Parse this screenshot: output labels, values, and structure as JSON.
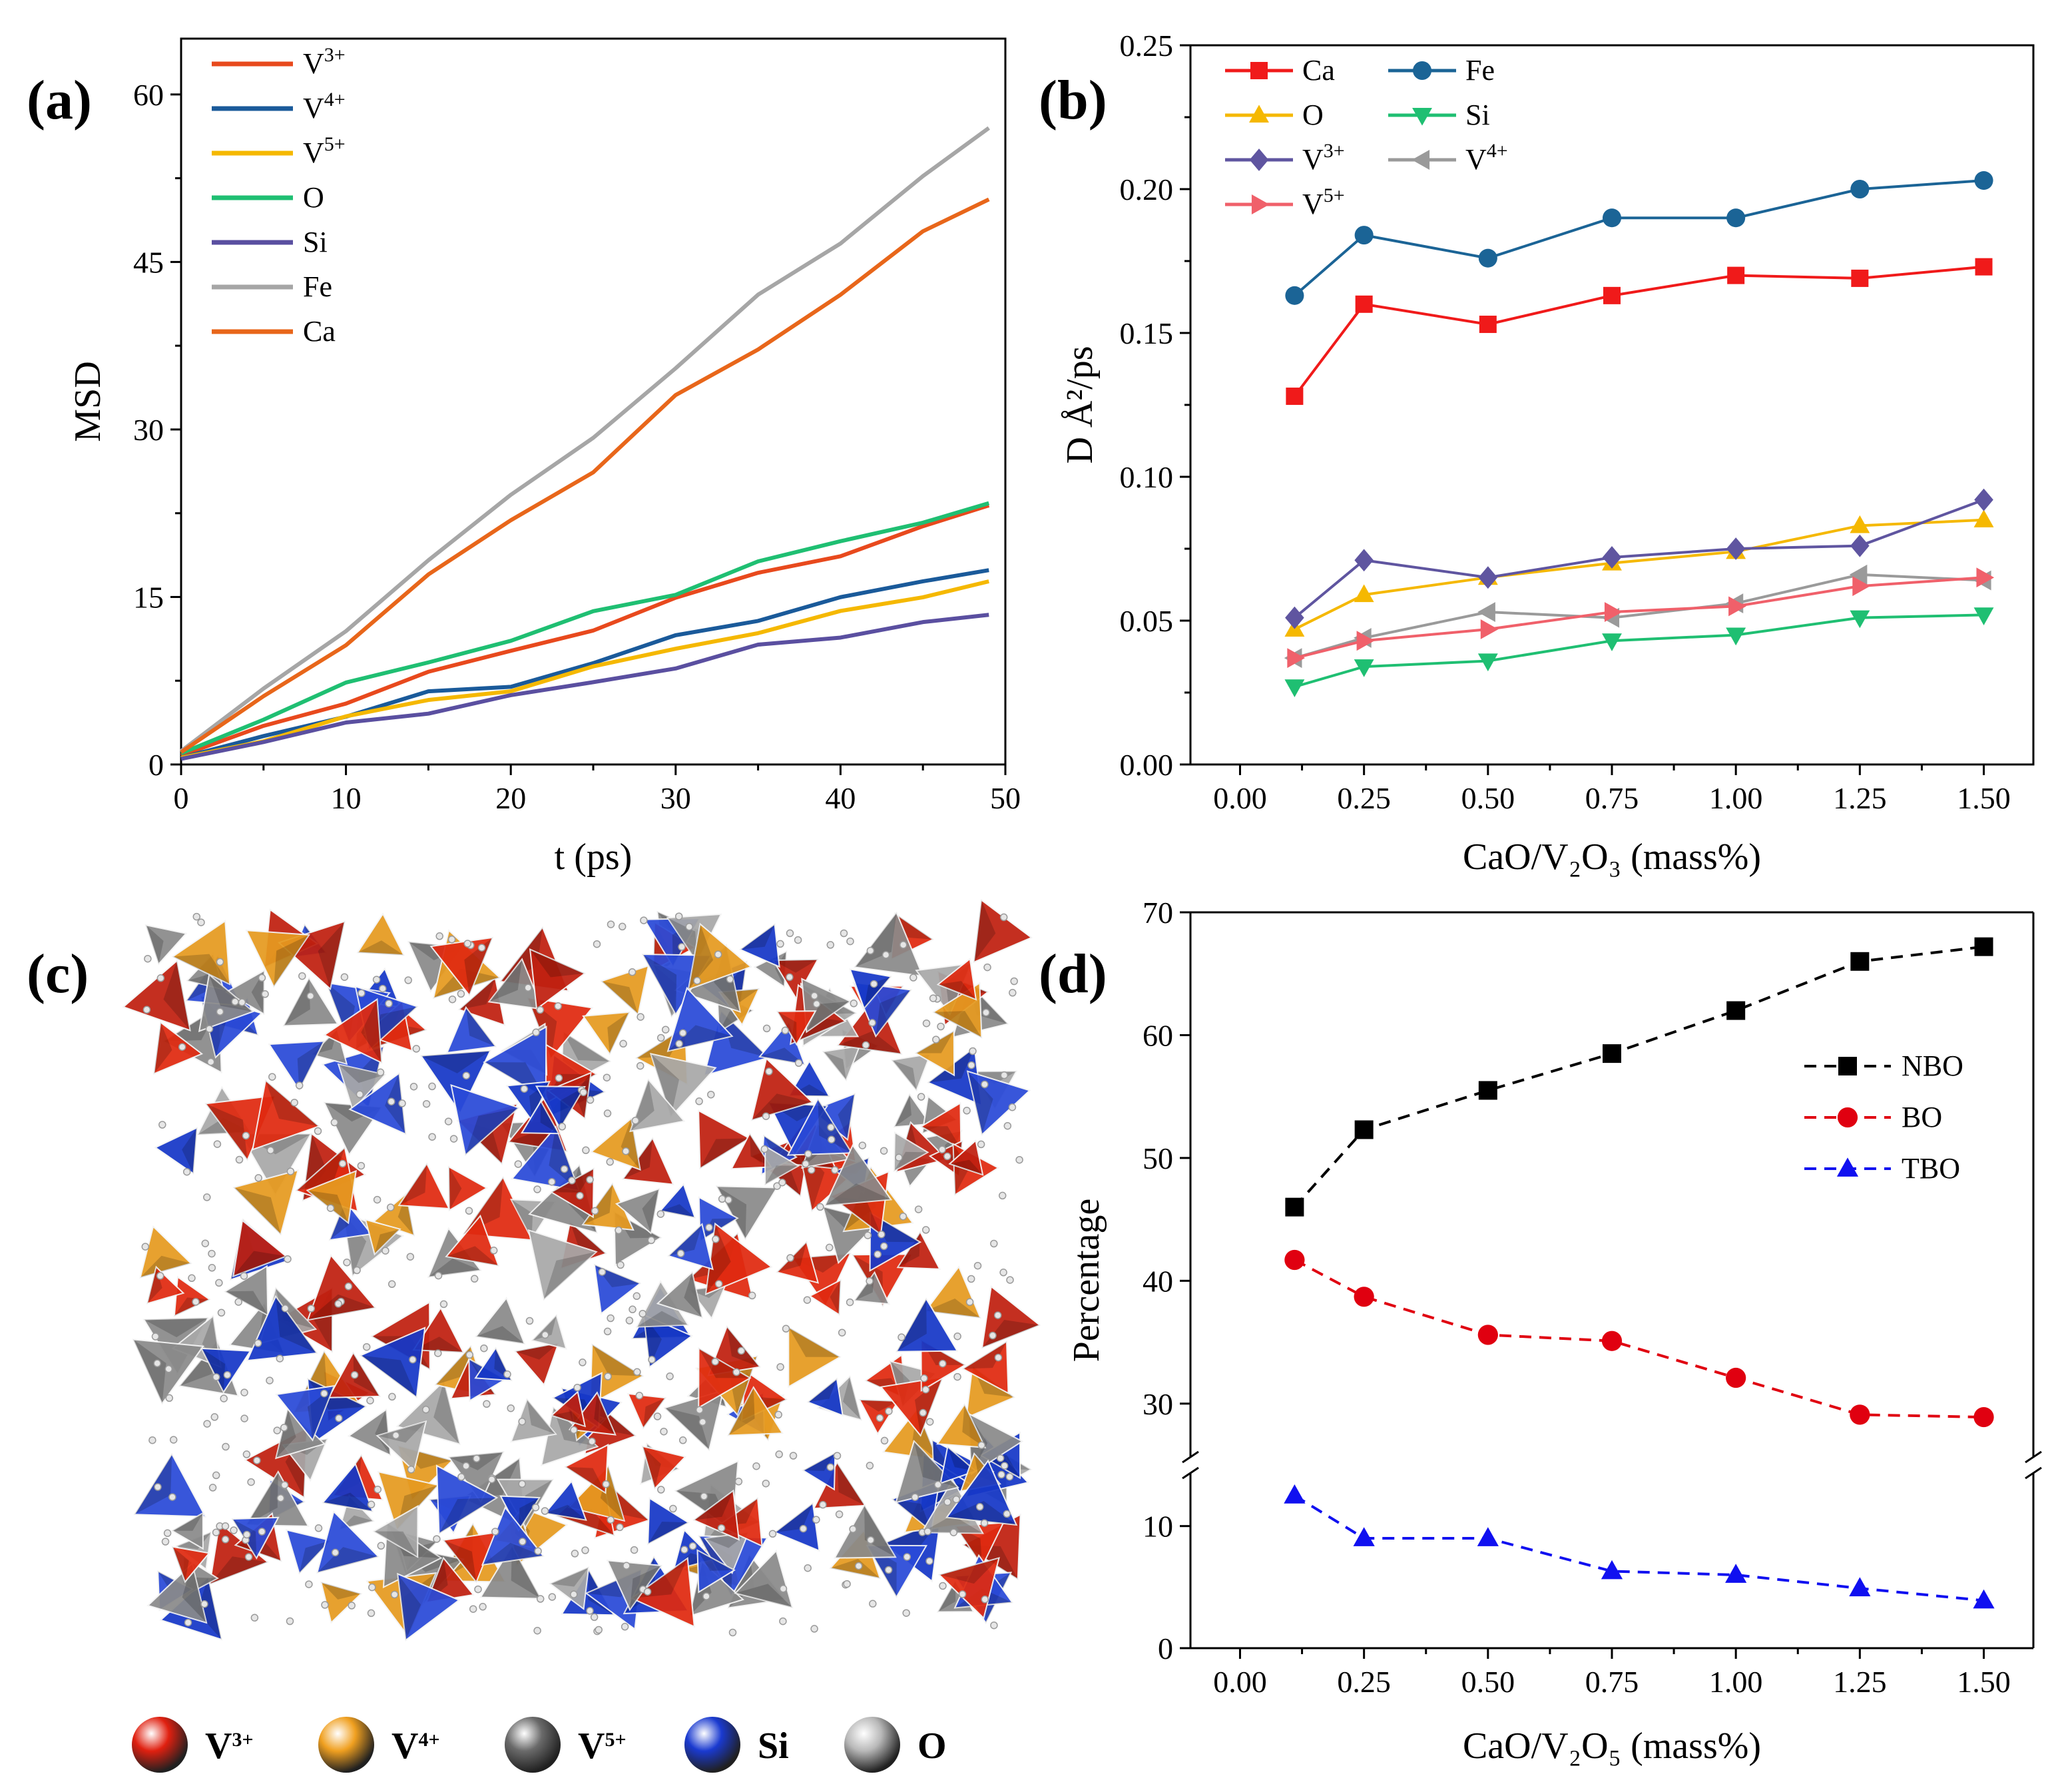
{
  "panels": {
    "a": {
      "letter": "(a)",
      "chart_data": {
        "type": "line",
        "xlabel": "t (ps)",
        "ylabel": "MSD",
        "xlim": [
          0,
          50
        ],
        "ylim": [
          0,
          65
        ],
        "xticks": [
          "0",
          "10",
          "20",
          "30",
          "40",
          "50"
        ],
        "yticks": [
          "0",
          "15",
          "30",
          "45",
          "60"
        ],
        "legend_position": "top-left",
        "series": [
          {
            "name": "V",
            "sup": "3+",
            "color": "#e8491d",
            "x": [
              0,
              5,
              10,
              15,
              20,
              25,
              30,
              35,
              40,
              45,
              49
            ],
            "values": [
              0.8,
              3.2,
              5.8,
              8.1,
              10.1,
              12.3,
              14.6,
              17.3,
              18.8,
              21.0,
              23.2
            ]
          },
          {
            "name": "V",
            "sup": "4+",
            "color": "#1a5a9a",
            "x": [
              0,
              5,
              10,
              15,
              20,
              25,
              30,
              35,
              40,
              45,
              49
            ],
            "values": [
              0.6,
              2.6,
              4.5,
              6.2,
              7.2,
              9.1,
              11.3,
              13.2,
              14.8,
              16.3,
              17.4
            ]
          },
          {
            "name": "V",
            "sup": "5+",
            "color": "#f5b800",
            "x": [
              0,
              5,
              10,
              15,
              20,
              25,
              30,
              35,
              40,
              45,
              49
            ],
            "values": [
              0.6,
              2.4,
              4.2,
              5.6,
              6.9,
              8.5,
              10.4,
              12.0,
              13.4,
              15.2,
              16.4
            ]
          },
          {
            "name": "O",
            "sup": "",
            "color": "#1fbf72",
            "x": [
              0,
              5,
              10,
              15,
              20,
              25,
              30,
              35,
              40,
              45,
              49
            ],
            "values": [
              1.0,
              4.3,
              7.0,
              9.3,
              11.2,
              13.4,
              15.5,
              18.1,
              19.8,
              22.0,
              23.4
            ]
          },
          {
            "name": "Si",
            "sup": "",
            "color": "#5a4fa0",
            "x": [
              0,
              5,
              10,
              15,
              20,
              25,
              30,
              35,
              40,
              45,
              49
            ],
            "values": [
              0.5,
              2.0,
              3.5,
              4.9,
              6.0,
              7.3,
              8.9,
              10.4,
              11.5,
              12.9,
              13.4
            ]
          },
          {
            "name": "Fe",
            "sup": "",
            "color": "#a6a6a6",
            "x": [
              0,
              5,
              10,
              15,
              20,
              25,
              30,
              35,
              40,
              45,
              49
            ],
            "values": [
              1.2,
              6.5,
              12.0,
              18.5,
              23.8,
              29.5,
              35.5,
              41.8,
              47.0,
              52.5,
              57.0
            ]
          },
          {
            "name": "Ca",
            "sup": "",
            "color": "#e8661a",
            "x": [
              0,
              5,
              10,
              15,
              20,
              25,
              30,
              35,
              40,
              45,
              49
            ],
            "values": [
              1.1,
              5.8,
              11.0,
              16.9,
              21.7,
              26.5,
              32.8,
              37.2,
              42.3,
              47.4,
              50.6
            ]
          }
        ]
      }
    },
    "b": {
      "letter": "(b)",
      "chart_data": {
        "type": "line",
        "xlabel": "CaO/V₂O₃ (mass%)",
        "ylabel": "D Å²/ps",
        "xlim": [
          -0.1,
          1.6
        ],
        "ylim": [
          0.0,
          0.25
        ],
        "xticks": [
          "0.00",
          "0.25",
          "0.50",
          "0.75",
          "1.00",
          "1.25",
          "1.50"
        ],
        "yticks": [
          "0.00",
          "0.05",
          "0.10",
          "0.15",
          "0.20",
          "0.25"
        ],
        "legend_position": "top-left",
        "x": [
          0.11,
          0.25,
          0.5,
          0.75,
          1.0,
          1.25,
          1.5
        ],
        "series": [
          {
            "name": "Ca",
            "sup": "",
            "color": "#f01a1a",
            "marker": "square",
            "values": [
              0.128,
              0.16,
              0.153,
              0.163,
              0.17,
              0.169,
              0.173
            ]
          },
          {
            "name": "Fe",
            "sup": "",
            "color": "#1b6496",
            "marker": "circle",
            "values": [
              0.163,
              0.184,
              0.176,
              0.19,
              0.19,
              0.2,
              0.203
            ]
          },
          {
            "name": "O",
            "sup": "",
            "color": "#f5b800",
            "marker": "triangle-up",
            "values": [
              0.047,
              0.059,
              0.065,
              0.07,
              0.074,
              0.083,
              0.085
            ]
          },
          {
            "name": "Si",
            "sup": "",
            "color": "#1fbf72",
            "marker": "triangle-down",
            "values": [
              0.027,
              0.034,
              0.036,
              0.043,
              0.045,
              0.051,
              0.052
            ]
          },
          {
            "name": "V",
            "sup": "3+",
            "color": "#5f55a0",
            "marker": "diamond",
            "values": [
              0.051,
              0.071,
              0.065,
              0.072,
              0.075,
              0.076,
              0.092
            ]
          },
          {
            "name": "V",
            "sup": "4+",
            "color": "#9a9a9a",
            "marker": "triangle-left",
            "values": [
              0.037,
              0.044,
              0.053,
              0.051,
              0.056,
              0.066,
              0.064
            ]
          },
          {
            "name": "V",
            "sup": "5+",
            "color": "#f0606a",
            "marker": "triangle-right",
            "values": [
              0.037,
              0.043,
              0.047,
              0.053,
              0.055,
              0.062,
              0.065
            ]
          }
        ]
      }
    },
    "c": {
      "letter": "(c)",
      "legend": [
        {
          "name": "V",
          "sup": "3+",
          "color": "#e02010"
        },
        {
          "name": "V",
          "sup": "4+",
          "color": "#f0a020"
        },
        {
          "name": "V",
          "sup": "5+",
          "color": "#6a6a6a"
        },
        {
          "name": "Si",
          "sup": "",
          "color": "#1a3ad0"
        },
        {
          "name": "O",
          "sup": "",
          "color": "#b8b8b8"
        }
      ],
      "tetra_colors": [
        "#e02a10",
        "#1638c8",
        "#8a8a8a",
        "#e69a20",
        "#c02010",
        "#2a4ad8",
        "#a8a8a8"
      ]
    },
    "d": {
      "letter": "(d)",
      "chart_data": {
        "type": "line",
        "xlabel": "CaO/V₂O₅ (mass%)",
        "ylabel": "Percentage",
        "xlim": [
          -0.1,
          1.6
        ],
        "ylim_lower": [
          0,
          15
        ],
        "ylim_upper": [
          25,
          70
        ],
        "axis_break": true,
        "xticks": [
          "0.00",
          "0.25",
          "0.50",
          "0.75",
          "1.00",
          "1.25",
          "1.50"
        ],
        "yticks_lower": [
          "0",
          "10"
        ],
        "yticks_upper": [
          "30",
          "40",
          "50",
          "60",
          "70"
        ],
        "legend_position": "right",
        "x": [
          0.11,
          0.25,
          0.5,
          0.75,
          1.0,
          1.25,
          1.5
        ],
        "series": [
          {
            "name": "NBO",
            "color": "#000000",
            "marker": "square",
            "values": [
              46.0,
              52.3,
              55.5,
              58.5,
              62.0,
              66.0,
              67.2
            ]
          },
          {
            "name": "BO",
            "color": "#e00010",
            "marker": "circle",
            "values": [
              41.7,
              38.7,
              35.6,
              35.1,
              32.1,
              29.1,
              28.9
            ]
          },
          {
            "name": "TBO",
            "color": "#1010f0",
            "marker": "triangle-up",
            "values": [
              12.5,
              9.0,
              9.0,
              6.3,
              6.0,
              4.9,
              3.9
            ]
          }
        ]
      }
    }
  }
}
